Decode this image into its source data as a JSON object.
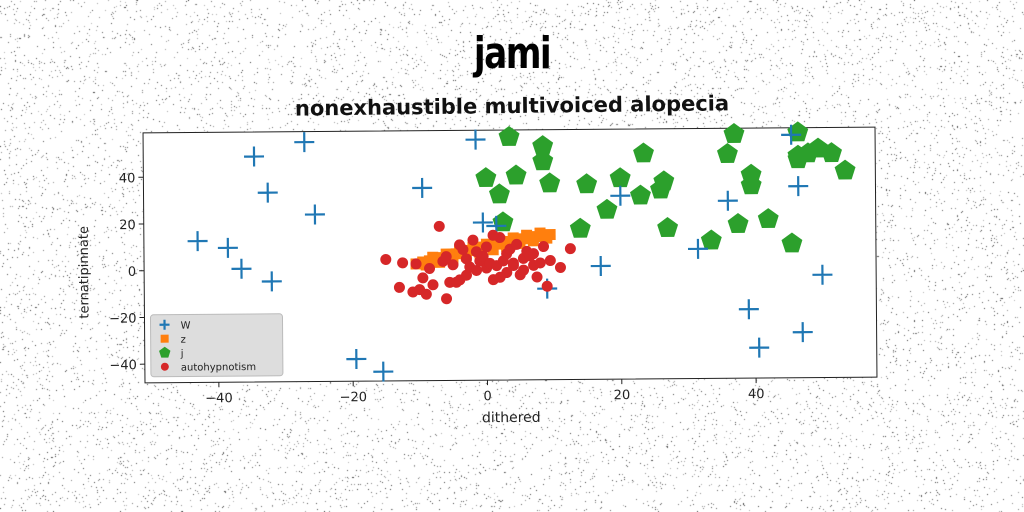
{
  "header": {
    "title": "jami"
  },
  "chart_data": {
    "type": "scatter",
    "title": "nonexhaustible multivoiced alopecia",
    "xlabel": "dithered",
    "ylabel": "ternatipinnate",
    "xlim": [
      -51,
      58
    ],
    "ylim": [
      -48,
      59
    ],
    "xticks": [
      -40,
      -20,
      0,
      20,
      40
    ],
    "xtick_labels": [
      "−40",
      "−20",
      "0",
      "20",
      "40"
    ],
    "yticks": [
      -40,
      -20,
      0,
      20,
      40
    ],
    "ytick_labels": [
      "−40",
      "−20",
      "0",
      "20",
      "40"
    ],
    "grid": false,
    "legend_position": "lower-left",
    "series": [
      {
        "name": "W",
        "marker": "plus",
        "color": "#1f77b4",
        "x": [
          -43,
          -38.5,
          -36.5,
          -34.5,
          -32.5,
          -32,
          -27,
          -25.5,
          -19.5,
          -15.5,
          -9.5,
          -1.5,
          -0.5,
          1.5,
          9,
          17,
          20,
          31.5,
          36,
          39,
          40.5,
          45.5,
          46.5,
          47,
          50
        ],
        "y": [
          12.5,
          9.5,
          0.5,
          48.5,
          33,
          -5,
          54.5,
          23.5,
          -38.5,
          -44,
          34.5,
          55,
          19.5,
          18,
          -9,
          0.5,
          30.5,
          7.5,
          28,
          -18.5,
          -35,
          56,
          34,
          -28.5,
          -4
        ]
      },
      {
        "name": "z",
        "marker": "square",
        "color": "#ff7f0e",
        "x": [
          -10.5,
          -9.5,
          -8.5,
          -7.5,
          -6.5,
          -5.5,
          -4.5,
          -3.5,
          -2.5,
          -1.5,
          -0.5,
          0.5,
          1.5,
          2.5,
          3.5,
          4.5,
          5.5,
          6.5,
          7.5,
          8.5,
          9.5,
          -9,
          -7,
          -5,
          -3,
          -1,
          1,
          3,
          5,
          7,
          9,
          -8,
          -6,
          -4,
          -2,
          0,
          2,
          4,
          6,
          8
        ],
        "y": [
          2,
          2.8,
          3.3,
          3.9,
          4.6,
          5.4,
          6.2,
          6.9,
          7.6,
          8.3,
          9,
          9.6,
          10.2,
          10.8,
          11.3,
          11.9,
          12.4,
          12.9,
          13.3,
          13.7,
          14.1,
          1.5,
          2.6,
          3.9,
          5.2,
          6.5,
          7.8,
          9.1,
          10.4,
          11.5,
          12.6,
          4.8,
          6.1,
          7.5,
          8.9,
          10.2,
          11.5,
          12.8,
          13.9,
          14.8
        ]
      },
      {
        "name": "j",
        "marker": "pentagon",
        "color": "#2ca02c",
        "x": [
          0,
          2,
          2.5,
          3.5,
          4.5,
          8.5,
          8.5,
          9.5,
          14,
          15,
          18,
          20,
          23,
          23.5,
          26,
          26.5,
          27,
          33.5,
          36,
          37,
          37.5,
          39.5,
          39.5,
          42,
          45.5,
          46.5,
          46.5,
          46.5,
          48,
          49.5,
          51.5,
          53.5
        ],
        "y": [
          38.5,
          31.5,
          19.5,
          56,
          39.5,
          52,
          45.5,
          36,
          16.5,
          35.5,
          24.5,
          38,
          30.5,
          48.5,
          33,
          36.5,
          16.5,
          11,
          48,
          56.5,
          18,
          39,
          34.5,
          20,
          9.5,
          47,
          57,
          45.5,
          48,
          50,
          48,
          40.5
        ]
      },
      {
        "name": "autohypnotism",
        "marker": "circle",
        "color": "#d62728",
        "x": [
          -15,
          -13,
          -12.5,
          -11,
          -10,
          -9.5,
          -9,
          -8.5,
          -8,
          -7,
          -6.5,
          -6,
          -5.5,
          -5,
          -4.5,
          -4,
          -3.5,
          -3,
          -3,
          -2.5,
          -2,
          -1.5,
          -1.5,
          -1,
          -0.5,
          0,
          0,
          0.5,
          1,
          1.5,
          2,
          2.5,
          3,
          3,
          3.5,
          4,
          4.5,
          5,
          5.5,
          5.5,
          6,
          6.5,
          7,
          7.5,
          8,
          9,
          9.5,
          11,
          12.5,
          -10.5,
          -6,
          -4,
          1,
          2,
          4,
          7,
          8.5
        ],
        "y": [
          4,
          -8,
          2.5,
          -10,
          -9,
          -4,
          -11,
          0,
          -7,
          18,
          3,
          -13,
          -6,
          1.5,
          -6,
          -5,
          8,
          4,
          -3,
          0.5,
          12,
          7,
          -1,
          3,
          5,
          9,
          0,
          2,
          -5,
          1,
          13,
          3,
          6,
          -2,
          8,
          2,
          10,
          -3,
          4,
          -1,
          7,
          5,
          1,
          -4,
          2,
          -8,
          3,
          0,
          8,
          2,
          5,
          10,
          14,
          -4,
          1,
          6,
          9
        ]
      }
    ]
  }
}
